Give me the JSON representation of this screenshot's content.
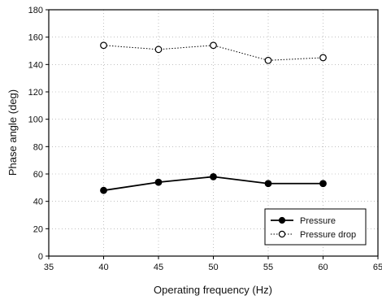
{
  "chart_data": {
    "type": "line",
    "title": "",
    "xlabel": "Operating frequency (Hz)",
    "ylabel": "Phase angle (deg)",
    "xlim": [
      35,
      65
    ],
    "ylim": [
      0,
      180
    ],
    "x_ticks": [
      "35",
      "40",
      "45",
      "50",
      "55",
      "60",
      "65"
    ],
    "y_ticks": [
      "0",
      "20",
      "40",
      "60",
      "80",
      "100",
      "120",
      "140",
      "160",
      "180"
    ],
    "x": [
      40,
      45,
      50,
      55,
      60
    ],
    "grid": true,
    "legend_position": "bottom-right",
    "series": [
      {
        "name": "Pressure",
        "values": [
          48,
          54,
          58,
          53,
          53
        ],
        "marker": "filled-circle",
        "line": "solid",
        "color": "#000000"
      },
      {
        "name": "Pressure drop",
        "values": [
          154,
          151,
          154,
          143,
          145
        ],
        "marker": "open-circle",
        "line": "dotted",
        "color": "#000000"
      }
    ]
  }
}
